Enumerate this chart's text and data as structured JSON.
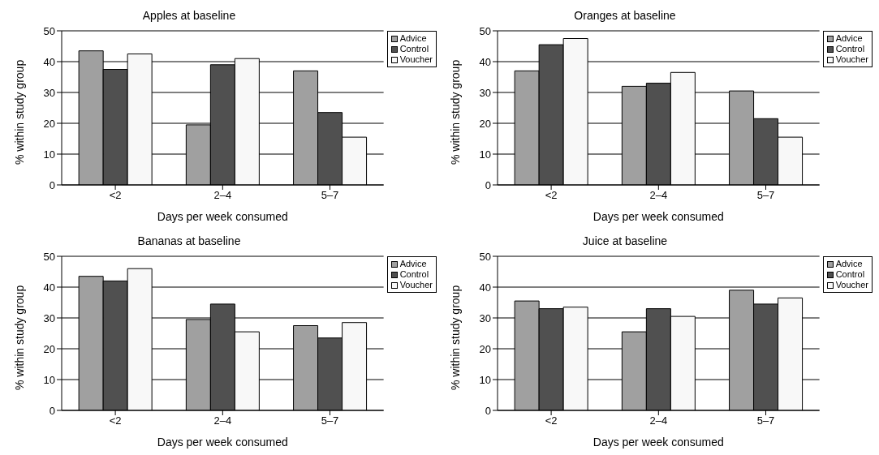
{
  "chart_data": [
    {
      "type": "bar",
      "title": "Apples at baseline",
      "xlabel": "Days per week consumed",
      "ylabel": "% within study group",
      "categories": [
        "<2",
        "2–4",
        "5–7"
      ],
      "series": [
        {
          "name": "Advice",
          "color": "#a0a0a0",
          "values": [
            43.5,
            19.5,
            37
          ]
        },
        {
          "name": "Control",
          "color": "#505050",
          "values": [
            37.5,
            39,
            23.5
          ]
        },
        {
          "name": "Voucher",
          "color": "#f8f8f8",
          "values": [
            42.5,
            41,
            15.5
          ]
        }
      ],
      "ylim": [
        0,
        50
      ],
      "yticks": [
        0,
        10,
        20,
        30,
        40,
        50
      ],
      "grid": "y",
      "legend": "top right"
    },
    {
      "type": "bar",
      "title": "Oranges at baseline",
      "xlabel": "Days per week consumed",
      "ylabel": "% within study group",
      "categories": [
        "<2",
        "2–4",
        "5–7"
      ],
      "series": [
        {
          "name": "Advice",
          "color": "#a0a0a0",
          "values": [
            37,
            32,
            30.5
          ]
        },
        {
          "name": "Control",
          "color": "#505050",
          "values": [
            45.5,
            33,
            21.5
          ]
        },
        {
          "name": "Voucher",
          "color": "#f8f8f8",
          "values": [
            47.5,
            36.5,
            15.5
          ]
        }
      ],
      "ylim": [
        0,
        50
      ],
      "yticks": [
        0,
        10,
        20,
        30,
        40,
        50
      ],
      "grid": "y",
      "legend": "top right"
    },
    {
      "type": "bar",
      "title": "Bananas at baseline",
      "xlabel": "Days per week consumed",
      "ylabel": "% within study group",
      "categories": [
        "<2",
        "2–4",
        "5–7"
      ],
      "series": [
        {
          "name": "Advice",
          "color": "#a0a0a0",
          "values": [
            43.5,
            29.5,
            27.5
          ]
        },
        {
          "name": "Control",
          "color": "#505050",
          "values": [
            42,
            34.5,
            23.5
          ]
        },
        {
          "name": "Voucher",
          "color": "#f8f8f8",
          "values": [
            46,
            25.5,
            28.5
          ]
        }
      ],
      "ylim": [
        0,
        50
      ],
      "yticks": [
        0,
        10,
        20,
        30,
        40,
        50
      ],
      "grid": "y",
      "legend": "top right"
    },
    {
      "type": "bar",
      "title": "Juice at baseline",
      "xlabel": "Days per week consumed",
      "ylabel": "% within study group",
      "categories": [
        "<2",
        "2–4",
        "5–7"
      ],
      "series": [
        {
          "name": "Advice",
          "color": "#a0a0a0",
          "values": [
            35.5,
            25.5,
            39
          ]
        },
        {
          "name": "Control",
          "color": "#505050",
          "values": [
            33,
            33,
            34.5
          ]
        },
        {
          "name": "Voucher",
          "color": "#f8f8f8",
          "values": [
            33.5,
            30.5,
            36.5
          ]
        }
      ],
      "ylim": [
        0,
        50
      ],
      "yticks": [
        0,
        10,
        20,
        30,
        40,
        50
      ],
      "grid": "y",
      "legend": "top right"
    }
  ]
}
